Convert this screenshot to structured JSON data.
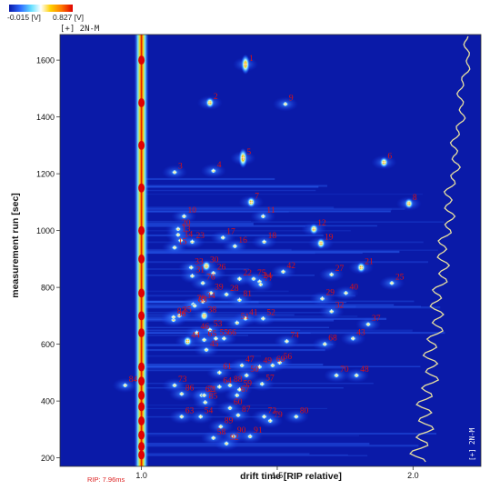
{
  "colorbar": {
    "min_label": "-0.015 [V]",
    "max_label": "0.827 [V]",
    "colors": [
      "#0a1aa8",
      "#2f6cff",
      "#66e0ff",
      "#ffffff",
      "#ffd000",
      "#ff7a00",
      "#e00000"
    ]
  },
  "mode_label": "[+] 2N-M",
  "side_mode_label": "[+] 2N-M",
  "rip_label": "RIP: 7.96ms",
  "chart_data": {
    "type": "heatmap",
    "title": "",
    "xlabel": "drift time [RIP relative]",
    "ylabel": "measurement run [sec]",
    "xlim": [
      0.7,
      2.25
    ],
    "ylim": [
      170,
      1690
    ],
    "x_ticks": [
      1.0,
      1.5,
      2.0
    ],
    "x_tick_labels": [
      "1.0",
      "1.5",
      "2.0"
    ],
    "y_ticks": [
      200,
      400,
      600,
      800,
      1000,
      1200,
      1400,
      1600
    ],
    "y_tick_labels": [
      "200",
      "400",
      "600",
      "800",
      "1000",
      "1200",
      "1400",
      "1600"
    ],
    "background_color": "#0a1aa8",
    "rip_line_x": 1.0,
    "peaks": [
      {
        "label": "1",
        "x": 1.383,
        "y": 1585
      },
      {
        "label": "2",
        "x": 1.252,
        "y": 1450
      },
      {
        "label": "3",
        "x": 1.122,
        "y": 1205
      },
      {
        "label": "4",
        "x": 1.265,
        "y": 1210
      },
      {
        "label": "5",
        "x": 1.374,
        "y": 1255
      },
      {
        "label": "6",
        "x": 1.893,
        "y": 1240
      },
      {
        "label": "7",
        "x": 1.404,
        "y": 1100
      },
      {
        "label": "8",
        "x": 1.985,
        "y": 1095
      },
      {
        "label": "9",
        "x": 1.53,
        "y": 1445
      },
      {
        "label": "10",
        "x": 1.157,
        "y": 1050
      },
      {
        "label": "11",
        "x": 1.448,
        "y": 1050
      },
      {
        "label": "12",
        "x": 1.635,
        "y": 1005
      },
      {
        "label": "13",
        "x": 1.135,
        "y": 985
      },
      {
        "label": "14",
        "x": 1.144,
        "y": 965
      },
      {
        "label": "15",
        "x": 1.122,
        "y": 940
      },
      {
        "label": "16",
        "x": 1.344,
        "y": 945
      },
      {
        "label": "17",
        "x": 1.3,
        "y": 975
      },
      {
        "label": "18",
        "x": 1.452,
        "y": 960
      },
      {
        "label": "19",
        "x": 1.661,
        "y": 955
      },
      {
        "label": "20",
        "x": 1.135,
        "y": 1005
      },
      {
        "label": "21",
        "x": 1.809,
        "y": 870
      },
      {
        "label": "22",
        "x": 1.361,
        "y": 830
      },
      {
        "label": "23",
        "x": 1.187,
        "y": 960
      },
      {
        "label": "24",
        "x": 1.435,
        "y": 820
      },
      {
        "label": "25",
        "x": 1.922,
        "y": 815
      },
      {
        "label": "26",
        "x": 1.265,
        "y": 850
      },
      {
        "label": "27",
        "x": 1.7,
        "y": 845
      },
      {
        "label": "28",
        "x": 1.313,
        "y": 775
      },
      {
        "label": "29",
        "x": 1.666,
        "y": 760
      },
      {
        "label": "30",
        "x": 1.239,
        "y": 875
      },
      {
        "label": "31",
        "x": 1.187,
        "y": 840
      },
      {
        "label": "32",
        "x": 1.7,
        "y": 715
      },
      {
        "label": "33",
        "x": 1.183,
        "y": 870
      },
      {
        "label": "34",
        "x": 1.226,
        "y": 750
      },
      {
        "label": "35",
        "x": 1.139,
        "y": 700
      },
      {
        "label": "36",
        "x": 1.118,
        "y": 685
      },
      {
        "label": "37",
        "x": 1.835,
        "y": 670
      },
      {
        "label": "38",
        "x": 1.231,
        "y": 700
      },
      {
        "label": "39",
        "x": 1.256,
        "y": 780
      },
      {
        "label": "40",
        "x": 1.753,
        "y": 780
      },
      {
        "label": "41",
        "x": 1.383,
        "y": 690
      },
      {
        "label": "42",
        "x": 1.522,
        "y": 855
      },
      {
        "label": "43",
        "x": 1.779,
        "y": 620
      },
      {
        "label": "44",
        "x": 1.17,
        "y": 610
      },
      {
        "label": "45",
        "x": 1.239,
        "y": 580
      },
      {
        "label": "46",
        "x": 1.204,
        "y": 640
      },
      {
        "label": "47",
        "x": 1.37,
        "y": 525
      },
      {
        "label": "48",
        "x": 1.792,
        "y": 490
      },
      {
        "label": "49",
        "x": 1.435,
        "y": 520
      },
      {
        "label": "50",
        "x": 1.387,
        "y": 490
      },
      {
        "label": "51",
        "x": 1.352,
        "y": 675
      },
      {
        "label": "52",
        "x": 1.448,
        "y": 690
      },
      {
        "label": "53",
        "x": 1.252,
        "y": 650
      },
      {
        "label": "54",
        "x": 1.218,
        "y": 345
      },
      {
        "label": "55",
        "x": 1.274,
        "y": 620
      },
      {
        "label": "56",
        "x": 1.509,
        "y": 535
      },
      {
        "label": "57",
        "x": 1.444,
        "y": 460
      },
      {
        "label": "58",
        "x": 1.265,
        "y": 270
      },
      {
        "label": "59",
        "x": 1.361,
        "y": 440
      },
      {
        "label": "60",
        "x": 1.326,
        "y": 375
      },
      {
        "label": "61",
        "x": 1.287,
        "y": 500
      },
      {
        "label": "62",
        "x": 1.222,
        "y": 420
      },
      {
        "label": "63",
        "x": 1.148,
        "y": 345
      },
      {
        "label": "64",
        "x": 1.287,
        "y": 450
      },
      {
        "label": "65",
        "x": 1.231,
        "y": 615
      },
      {
        "label": "66",
        "x": 1.304,
        "y": 620
      },
      {
        "label": "67",
        "x": 1.352,
        "y": 420
      },
      {
        "label": "68",
        "x": 1.675,
        "y": 600
      },
      {
        "label": "69",
        "x": 1.483,
        "y": 525
      },
      {
        "label": "70",
        "x": 1.718,
        "y": 490
      },
      {
        "label": "71",
        "x": 1.231,
        "y": 420
      },
      {
        "label": "72",
        "x": 1.452,
        "y": 345
      },
      {
        "label": "73",
        "x": 1.122,
        "y": 455
      },
      {
        "label": "74",
        "x": 1.535,
        "y": 610
      },
      {
        "label": "75",
        "x": 1.413,
        "y": 830
      },
      {
        "label": "76",
        "x": 1.226,
        "y": 815
      },
      {
        "label": "77",
        "x": 1.439,
        "y": 810
      },
      {
        "label": "78",
        "x": 1.191,
        "y": 740
      },
      {
        "label": "79",
        "x": 1.474,
        "y": 330
      },
      {
        "label": "80",
        "x": 1.57,
        "y": 345
      },
      {
        "label": "81",
        "x": 1.361,
        "y": 755
      },
      {
        "label": "82",
        "x": 1.118,
        "y": 695
      },
      {
        "label": "83",
        "x": 1.196,
        "y": 735
      },
      {
        "label": "84",
        "x": 0.94,
        "y": 455
      },
      {
        "label": "85",
        "x": 1.235,
        "y": 395
      },
      {
        "label": "86",
        "x": 1.148,
        "y": 425
      },
      {
        "label": "87",
        "x": 1.356,
        "y": 350
      },
      {
        "label": "88",
        "x": 1.326,
        "y": 455
      },
      {
        "label": "89",
        "x": 1.292,
        "y": 310
      },
      {
        "label": "90",
        "x": 1.339,
        "y": 275
      },
      {
        "label": "91",
        "x": 1.4,
        "y": 275
      },
      {
        "label": "92",
        "x": 1.313,
        "y": 250
      }
    ],
    "spectrum_color": "#e8e0a0"
  }
}
